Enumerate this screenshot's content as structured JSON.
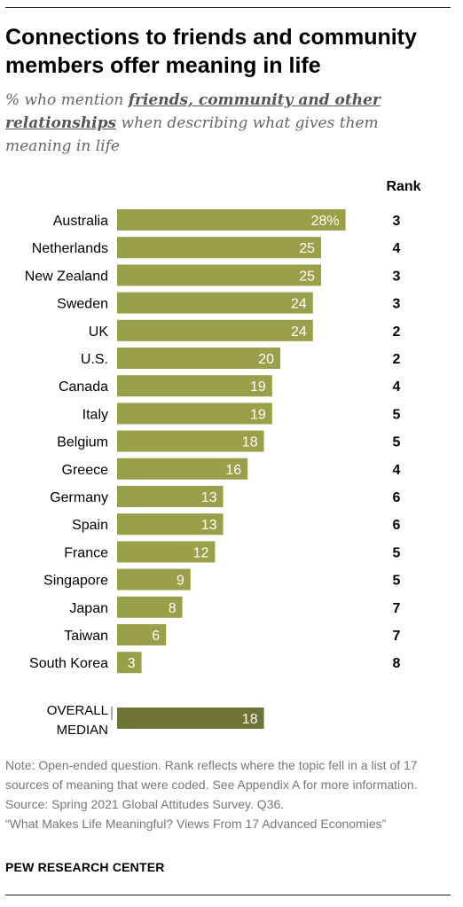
{
  "title": "Connections to friends and community members offer meaning in life",
  "subtitle": {
    "prefix": "% who mention ",
    "emphasis": "friends, community and other relationships",
    "suffix": " when describing what gives them meaning in life"
  },
  "rank_header": "Rank",
  "colors": {
    "bar": "#9aa04a",
    "median_bar": "#6e7336",
    "bar_label": "#ffffff",
    "text": "#000000",
    "note": "#777777"
  },
  "chart_data": {
    "type": "bar",
    "orientation": "horizontal",
    "unit": "%",
    "xlim": [
      0,
      36
    ],
    "categories": [
      "Australia",
      "Netherlands",
      "New Zealand",
      "Sweden",
      "UK",
      "U.S.",
      "Canada",
      "Italy",
      "Belgium",
      "Greece",
      "Germany",
      "Spain",
      "France",
      "Singapore",
      "Japan",
      "Taiwan",
      "South Korea"
    ],
    "values": [
      28,
      25,
      25,
      24,
      24,
      20,
      19,
      19,
      18,
      16,
      13,
      13,
      12,
      9,
      8,
      6,
      3
    ],
    "value_labels": [
      "28%",
      "25",
      "25",
      "24",
      "24",
      "20",
      "19",
      "19",
      "18",
      "16",
      "13",
      "13",
      "12",
      "9",
      "8",
      "6",
      "3"
    ],
    "ranks": [
      3,
      4,
      3,
      3,
      2,
      2,
      4,
      5,
      5,
      4,
      6,
      6,
      5,
      5,
      7,
      7,
      8
    ],
    "median": {
      "label_lines": [
        "OVERALL",
        "MEDIAN"
      ],
      "value": 18,
      "value_label": "18"
    }
  },
  "notes": [
    "Note: Open-ended question. Rank reflects where the topic fell in a list of 17 sources of meaning that were coded. See Appendix A for more information.",
    "Source: Spring 2021 Global Attitudes Survey. Q36.",
    "“What Makes Life Meaningful? Views From 17 Advanced Economies”"
  ],
  "brand": "PEW RESEARCH CENTER"
}
